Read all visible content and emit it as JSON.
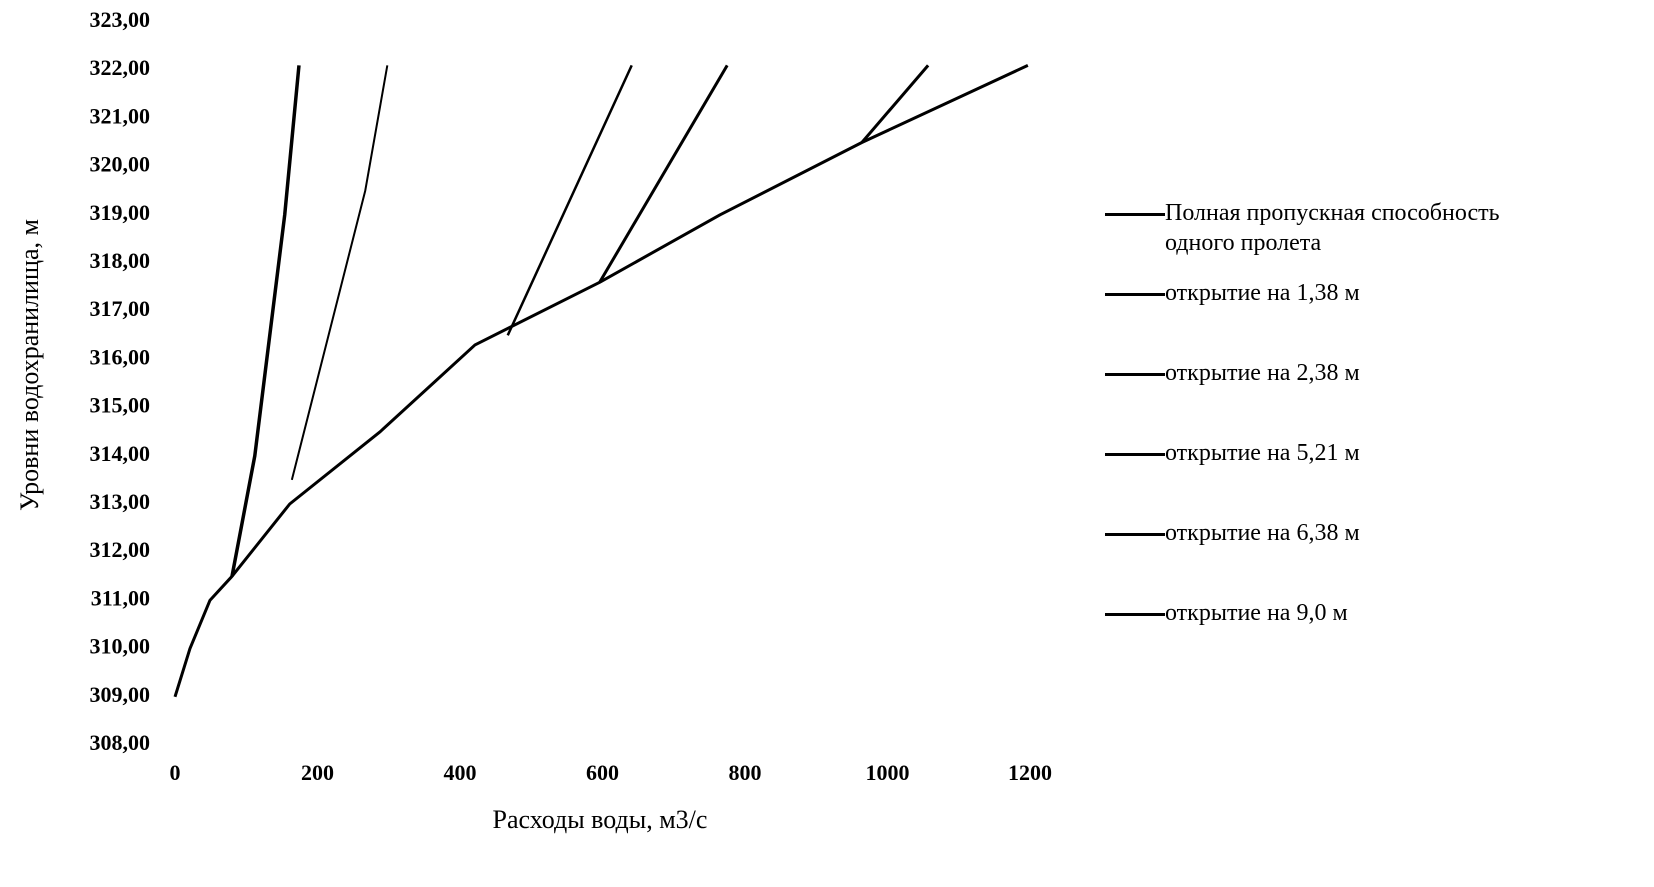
{
  "chart_data": {
    "type": "line",
    "x_label": "Расходы воды, м3/с",
    "y_label": "Уровни водохранилища, м",
    "xlim": [
      0,
      1200
    ],
    "xticks": [
      0,
      200,
      400,
      600,
      800,
      1000,
      1200
    ],
    "ylim": [
      308,
      323
    ],
    "yticks": [
      {
        "value": 308,
        "label": "308,00"
      },
      {
        "value": 309,
        "label": "309,00"
      },
      {
        "value": 310,
        "label": "310,00"
      },
      {
        "value": 311,
        "label": "311,00"
      },
      {
        "value": 312,
        "label": "312,00"
      },
      {
        "value": 313,
        "label": "313,00"
      },
      {
        "value": 314,
        "label": "314,00"
      },
      {
        "value": 315,
        "label": "315,00"
      },
      {
        "value": 316,
        "label": "316,00"
      },
      {
        "value": 317,
        "label": "317,00"
      },
      {
        "value": 318,
        "label": "318,00"
      },
      {
        "value": 319,
        "label": "319,00"
      },
      {
        "value": 320,
        "label": "320,00"
      },
      {
        "value": 321,
        "label": "321,00"
      },
      {
        "value": 322,
        "label": "322,00"
      },
      {
        "value": 323,
        "label": "323,00"
      }
    ],
    "grid": false,
    "series": [
      {
        "name": "Полная пропускная способность одного пролета",
        "color": "#000000",
        "x": [
          0,
          21,
          49,
          80,
          161,
          288,
          421,
          596,
          765,
          964,
          1197
        ],
        "values": [
          309,
          310,
          311,
          311.5,
          313,
          314.5,
          316.3,
          317.6,
          319,
          320.5,
          322.1
        ]
      },
      {
        "name": "открытие на 1,38 м",
        "color": "#000000",
        "x": [
          80,
          112,
          154,
          174
        ],
        "values": [
          311.5,
          314,
          319,
          322.1
        ]
      },
      {
        "name": "открытие на 2,38 м",
        "color": "#000000",
        "x": [
          164,
          267,
          298
        ],
        "values": [
          313.5,
          319.5,
          322.1
        ]
      },
      {
        "name": "открытие на 5,21 м",
        "color": "#000000",
        "x": [
          467,
          641
        ],
        "values": [
          316.5,
          322.1
        ]
      },
      {
        "name": "открытие на 6,38 м",
        "color": "#000000",
        "x": [
          596,
          775
        ],
        "values": [
          317.6,
          322.1
        ]
      },
      {
        "name": "открытие на 9,0 м",
        "color": "#000000",
        "x": [
          964,
          1057
        ],
        "values": [
          320.5,
          322.1
        ]
      }
    ]
  }
}
